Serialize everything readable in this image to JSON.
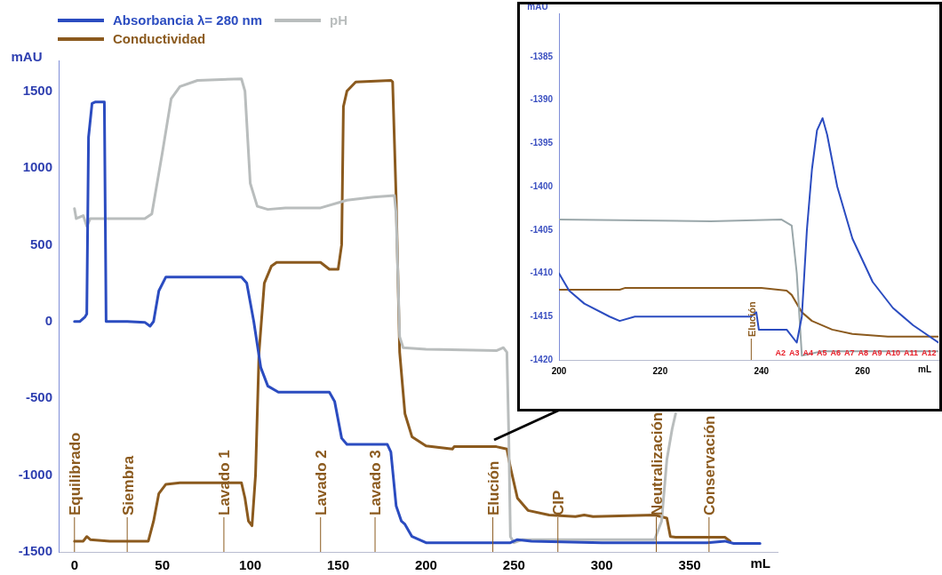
{
  "chart_data": [
    {
      "type": "line",
      "xlabel": "mL",
      "ylabel": "mAU",
      "legend": "top left",
      "xlim": [
        -9,
        400
      ],
      "xticks": [
        0,
        50,
        100,
        150,
        200,
        250,
        300,
        350
      ],
      "ylim": [
        -1500,
        1700
      ],
      "yticks": [
        -1500,
        -1000,
        -500,
        0,
        500,
        1000,
        1500
      ],
      "series": [
        {
          "name": "Absorbancia λ= 280 nm",
          "color": "#2b4cc0",
          "x": [
            0,
            3,
            6,
            7,
            8,
            10,
            12,
            17,
            18,
            30,
            40,
            43,
            45,
            48,
            52,
            95,
            98,
            102,
            106,
            110,
            116,
            145,
            148,
            152,
            155,
            178,
            180,
            183,
            186,
            188,
            192,
            200,
            248,
            252,
            260,
            300,
            360,
            370,
            375,
            390
          ],
          "values": [
            0,
            0,
            30,
            50,
            1200,
            1420,
            1430,
            1430,
            0,
            0,
            -5,
            -30,
            0,
            200,
            290,
            290,
            250,
            0,
            -300,
            -420,
            -460,
            -460,
            -520,
            -760,
            -800,
            -800,
            -850,
            -1200,
            -1300,
            -1320,
            -1400,
            -1440,
            -1440,
            -1420,
            -1430,
            -1440,
            -1440,
            -1430,
            -1445,
            -1445
          ]
        },
        {
          "name": "pH",
          "color": "#b9bdbd",
          "x": [
            0,
            1,
            5,
            7,
            9,
            40,
            44,
            50,
            55,
            60,
            70,
            95,
            97,
            100,
            104,
            110,
            120,
            140,
            155,
            170,
            182,
            183,
            185,
            187,
            200,
            240,
            244,
            246,
            247,
            248,
            250,
            255,
            330,
            334,
            337,
            340,
            342
          ],
          "values": [
            735,
            670,
            690,
            620,
            670,
            670,
            700,
            1100,
            1450,
            1530,
            1570,
            1580,
            1500,
            900,
            750,
            730,
            740,
            740,
            790,
            810,
            820,
            700,
            -100,
            -170,
            -180,
            -190,
            -170,
            -200,
            -700,
            -1400,
            -1440,
            -1420,
            -1420,
            -1300,
            -900,
            -700,
            -600
          ]
        },
        {
          "name": "Conductividad",
          "color": "#8b5a1e",
          "x": [
            0,
            5,
            7,
            9,
            20,
            42,
            45,
            48,
            52,
            60,
            95,
            97,
            99,
            101,
            103,
            105,
            108,
            112,
            115,
            140,
            145,
            150,
            152,
            153,
            155,
            160,
            180,
            181,
            183,
            185,
            188,
            192,
            200,
            215,
            216,
            240,
            246,
            248,
            252,
            258,
            270,
            285,
            290,
            295,
            330,
            337,
            339,
            342,
            370,
            373
          ],
          "values": [
            -1430,
            -1430,
            -1400,
            -1420,
            -1430,
            -1430,
            -1300,
            -1120,
            -1060,
            -1050,
            -1050,
            -1150,
            -1300,
            -1330,
            -1000,
            -200,
            250,
            360,
            385,
            385,
            340,
            340,
            500,
            1400,
            1500,
            1560,
            1570,
            1560,
            800,
            -200,
            -600,
            -750,
            -810,
            -830,
            -815,
            -815,
            -830,
            -950,
            -1150,
            -1230,
            -1260,
            -1270,
            -1260,
            -1270,
            -1260,
            -1280,
            -1400,
            -1405,
            -1405,
            -1430
          ]
        }
      ],
      "ref_lines": [
        {
          "axis": "x",
          "value": 0,
          "label": "Equilibrado",
          "color": "#8b5a1e"
        },
        {
          "axis": "x",
          "value": 30,
          "label": "Siembra",
          "color": "#8b5a1e"
        },
        {
          "axis": "x",
          "value": 85,
          "label": "Lavado 1",
          "color": "#8b5a1e"
        },
        {
          "axis": "x",
          "value": 140,
          "label": "Lavado 2",
          "color": "#8b5a1e"
        },
        {
          "axis": "x",
          "value": 171,
          "label": "Lavado 3",
          "color": "#8b5a1e"
        },
        {
          "axis": "x",
          "value": 238,
          "label": "Elución",
          "color": "#8b5a1e"
        },
        {
          "axis": "x",
          "value": 275,
          "label": "CIP",
          "color": "#8b5a1e"
        },
        {
          "axis": "x",
          "value": 331,
          "label": "Neutralización",
          "color": "#8b5a1e"
        },
        {
          "axis": "x",
          "value": 361,
          "label": "Conservación",
          "color": "#8b5a1e"
        }
      ]
    },
    {
      "type": "line",
      "xlabel": "mL",
      "ylabel": "mAU",
      "xlim": [
        200,
        275
      ],
      "xticks": [
        200,
        220,
        240,
        260
      ],
      "ylim": [
        -1420,
        -1380
      ],
      "yticks": [
        -1420,
        -1415,
        -1410,
        -1405,
        -1400,
        -1395,
        -1390,
        -1385
      ],
      "series": [
        {
          "color": "#2b4cc0",
          "x": [
            200,
            202,
            205,
            210,
            212,
            215,
            238,
            239,
            239.5,
            245,
            247,
            248,
            249,
            250,
            251,
            252.1,
            253,
            255,
            258,
            262,
            266,
            270,
            275
          ],
          "values": [
            -1410,
            -1412,
            -1413.5,
            -1415,
            -1415.5,
            -1415,
            -1415,
            -1414.5,
            -1416.5,
            -1416.5,
            -1418,
            -1415,
            -1405,
            -1398,
            -1393.5,
            -1392.1,
            -1394,
            -1400,
            -1406,
            -1411,
            -1414,
            -1416,
            -1418
          ]
        },
        {
          "color": "#9aa7aa",
          "x": [
            200,
            230,
            244,
            246,
            247,
            248,
            252,
            275
          ],
          "values": [
            -1403.8,
            -1404,
            -1403.8,
            -1404.5,
            -1410,
            -1419.5,
            -1419,
            -1419
          ]
        },
        {
          "color": "#8b5a1e",
          "x": [
            200,
            212,
            213,
            240,
            245,
            246,
            248,
            250,
            254,
            258,
            265,
            275
          ],
          "values": [
            -1411.9,
            -1411.9,
            -1411.7,
            -1411.7,
            -1412,
            -1412.5,
            -1414.5,
            -1415.5,
            -1416.5,
            -1417,
            -1417.3,
            -1417.3
          ]
        }
      ],
      "ref_lines": [
        {
          "axis": "x",
          "value": 238,
          "label": "Elución",
          "color": "#8b5a1e"
        }
      ],
      "annotations": [
        "A2",
        "A3",
        "A4",
        "A5",
        "A6",
        "A7",
        "A8",
        "A9",
        "A10",
        "A11",
        "A12"
      ]
    }
  ]
}
